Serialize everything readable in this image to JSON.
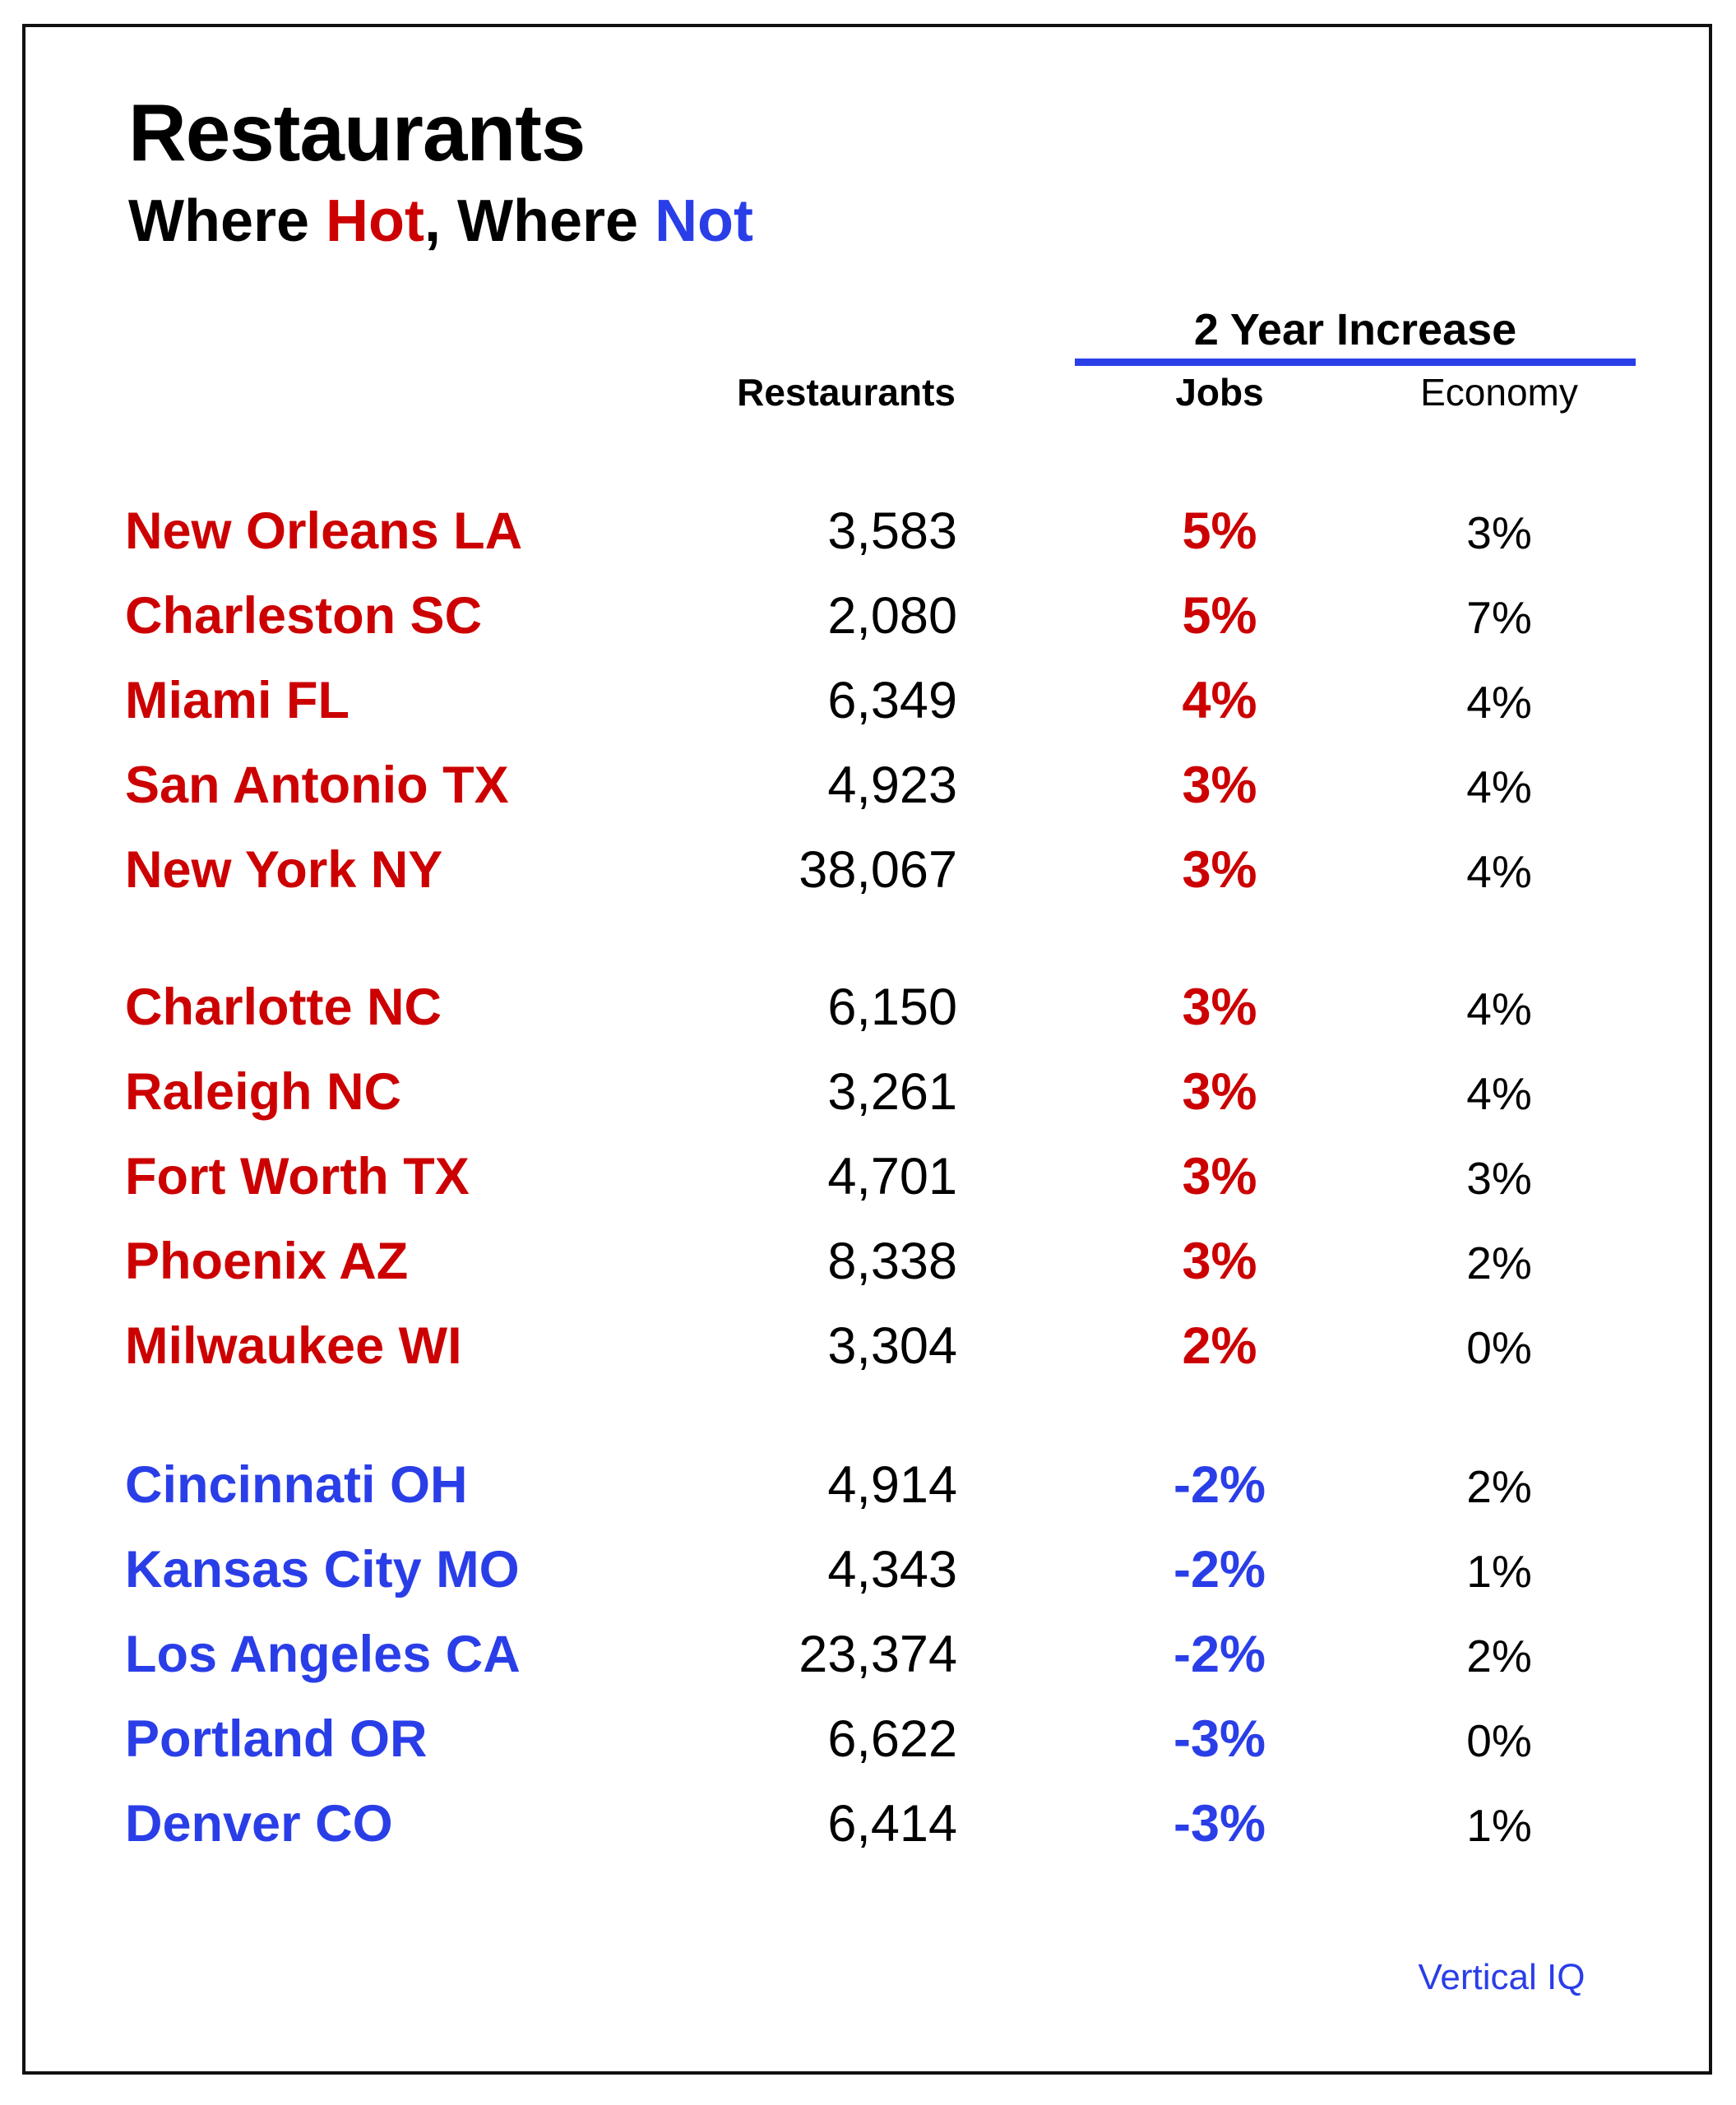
{
  "header": {
    "title": "Restaurants",
    "subtitle": {
      "part1": "Where ",
      "hot": "Hot",
      "part2": ", Where ",
      "not": "Not"
    }
  },
  "table": {
    "group_header": "2 Year Increase",
    "columns": {
      "restaurants": "Restaurants",
      "jobs": "Jobs",
      "economy": "Economy"
    },
    "rows": [
      {
        "city": "New Orleans LA",
        "restaurants": "3,583",
        "jobs": "5%",
        "economy": "3%",
        "status": "hot"
      },
      {
        "city": "Charleston SC",
        "restaurants": "2,080",
        "jobs": "5%",
        "economy": "7%",
        "status": "hot"
      },
      {
        "city": "Miami FL",
        "restaurants": "6,349",
        "jobs": "4%",
        "economy": "4%",
        "status": "hot"
      },
      {
        "city": "San Antonio TX",
        "restaurants": "4,923",
        "jobs": "3%",
        "economy": "4%",
        "status": "hot"
      },
      {
        "city": "New York NY",
        "restaurants": "38,067",
        "jobs": "3%",
        "economy": "4%",
        "status": "hot"
      },
      {
        "city": "Charlotte NC",
        "restaurants": "6,150",
        "jobs": "3%",
        "economy": "4%",
        "status": "hot"
      },
      {
        "city": "Raleigh NC",
        "restaurants": "3,261",
        "jobs": "3%",
        "economy": "4%",
        "status": "hot"
      },
      {
        "city": "Fort Worth TX",
        "restaurants": "4,701",
        "jobs": "3%",
        "economy": "3%",
        "status": "hot"
      },
      {
        "city": "Phoenix AZ",
        "restaurants": "8,338",
        "jobs": "3%",
        "economy": "2%",
        "status": "hot"
      },
      {
        "city": "Milwaukee WI",
        "restaurants": "3,304",
        "jobs": "2%",
        "economy": "0%",
        "status": "hot"
      },
      {
        "city": "Cincinnati OH",
        "restaurants": "4,914",
        "jobs": "-2%",
        "economy": "2%",
        "status": "not"
      },
      {
        "city": "Kansas City MO",
        "restaurants": "4,343",
        "jobs": "-2%",
        "economy": "1%",
        "status": "not"
      },
      {
        "city": "Los Angeles CA",
        "restaurants": "23,374",
        "jobs": "-2%",
        "economy": "2%",
        "status": "not"
      },
      {
        "city": "Portland OR",
        "restaurants": "6,622",
        "jobs": "-3%",
        "economy": "0%",
        "status": "not"
      },
      {
        "city": "Denver CO",
        "restaurants": "6,414",
        "jobs": "-3%",
        "economy": "1%",
        "status": "not"
      }
    ]
  },
  "footer": {
    "source": "Vertical IQ"
  },
  "colors": {
    "hot": "#cc0000",
    "not": "#2a3ee8",
    "rule": "#2a3ee8",
    "text": "#000000"
  }
}
